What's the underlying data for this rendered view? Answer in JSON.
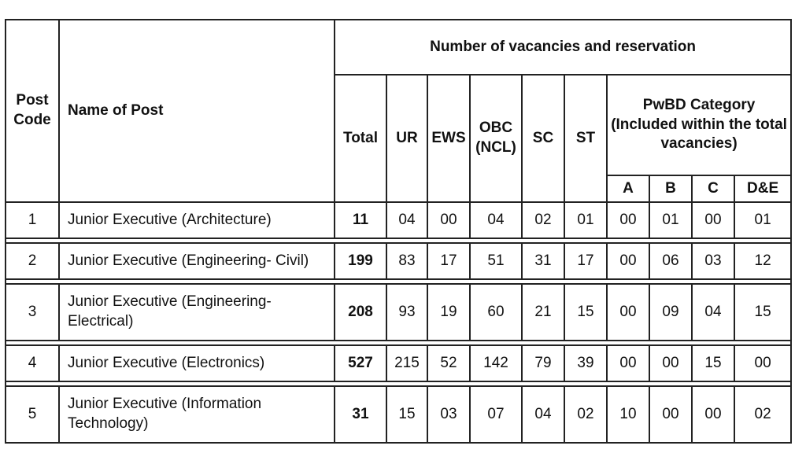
{
  "header": {
    "post_code": "Post Code",
    "name_of_post": "Name of Post",
    "group": "Number of vacancies and reservation",
    "total": "Total",
    "ur": "UR",
    "ews": "EWS",
    "obc": "OBC (NCL)",
    "sc": "SC",
    "st": "ST",
    "pwbd": "PwBD Category (Included within the total vacancies)",
    "pwbd_a": "A",
    "pwbd_b": "B",
    "pwbd_c": "C",
    "pwbd_de": "D&E"
  },
  "rows": [
    {
      "code": "1",
      "name": "Junior Executive (Architecture)",
      "total": "11",
      "ur": "04",
      "ews": "00",
      "obc": "04",
      "sc": "02",
      "st": "01",
      "a": "00",
      "b": "01",
      "c": "00",
      "de": "01"
    },
    {
      "code": "2",
      "name": "Junior Executive (Engineering- Civil)",
      "total": "199",
      "ur": "83",
      "ews": "17",
      "obc": "51",
      "sc": "31",
      "st": "17",
      "a": "00",
      "b": "06",
      "c": "03",
      "de": "12"
    },
    {
      "code": "3",
      "name": "Junior Executive (Engineering- Electrical)",
      "total": "208",
      "ur": "93",
      "ews": "19",
      "obc": "60",
      "sc": "21",
      "st": "15",
      "a": "00",
      "b": "09",
      "c": "04",
      "de": "15"
    },
    {
      "code": "4",
      "name": "Junior Executive (Electronics)",
      "total": "527",
      "ur": "215",
      "ews": "52",
      "obc": "142",
      "sc": "79",
      "st": "39",
      "a": "00",
      "b": "00",
      "c": "15",
      "de": "00"
    },
    {
      "code": "5",
      "name": "Junior Executive (Information Technology)",
      "total": "31",
      "ur": "15",
      "ews": "03",
      "obc": "07",
      "sc": "04",
      "st": "02",
      "a": "10",
      "b": "00",
      "c": "00",
      "de": "02"
    }
  ]
}
